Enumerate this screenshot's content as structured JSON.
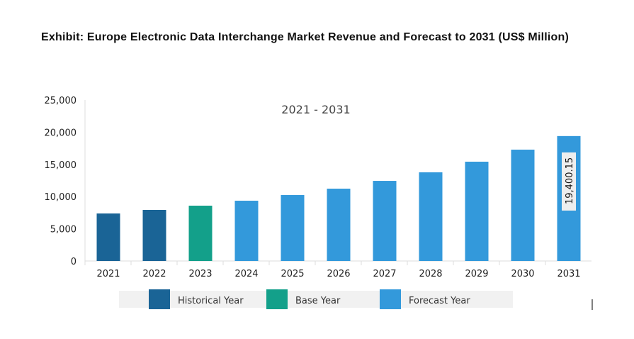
{
  "chart_data": {
    "type": "bar",
    "title": "Exhibit: Europe Electronic Data Interchange Market Revenue and Forecast to 2031 (US$ Million)",
    "subtitle": "2021 - 2031",
    "categories": [
      "2021",
      "2022",
      "2023",
      "2024",
      "2025",
      "2026",
      "2027",
      "2028",
      "2029",
      "2030",
      "2031"
    ],
    "values": [
      7380,
      7930,
      8590,
      9360,
      10240,
      11230,
      12440,
      13770,
      15420,
      17290,
      19400.15
    ],
    "category_type": [
      "Historical Year",
      "Historical Year",
      "Base Year",
      "Forecast Year",
      "Forecast Year",
      "Forecast Year",
      "Forecast Year",
      "Forecast Year",
      "Forecast Year",
      "Forecast Year",
      "Forecast Year"
    ],
    "data_labels": {
      "10": "19,400.15"
    },
    "ylim": [
      0,
      25000
    ],
    "yticks": [
      "0",
      "5,000",
      "10,000",
      "15,000",
      "20,000",
      "25,000"
    ],
    "grid": false,
    "legend": {
      "placement": "bottom",
      "entries": [
        {
          "label": "Historical Year",
          "color": "#1a6496"
        },
        {
          "label": "Base Year",
          "color": "#13a08a"
        },
        {
          "label": "Forecast Year",
          "color": "#3399db"
        }
      ]
    }
  }
}
